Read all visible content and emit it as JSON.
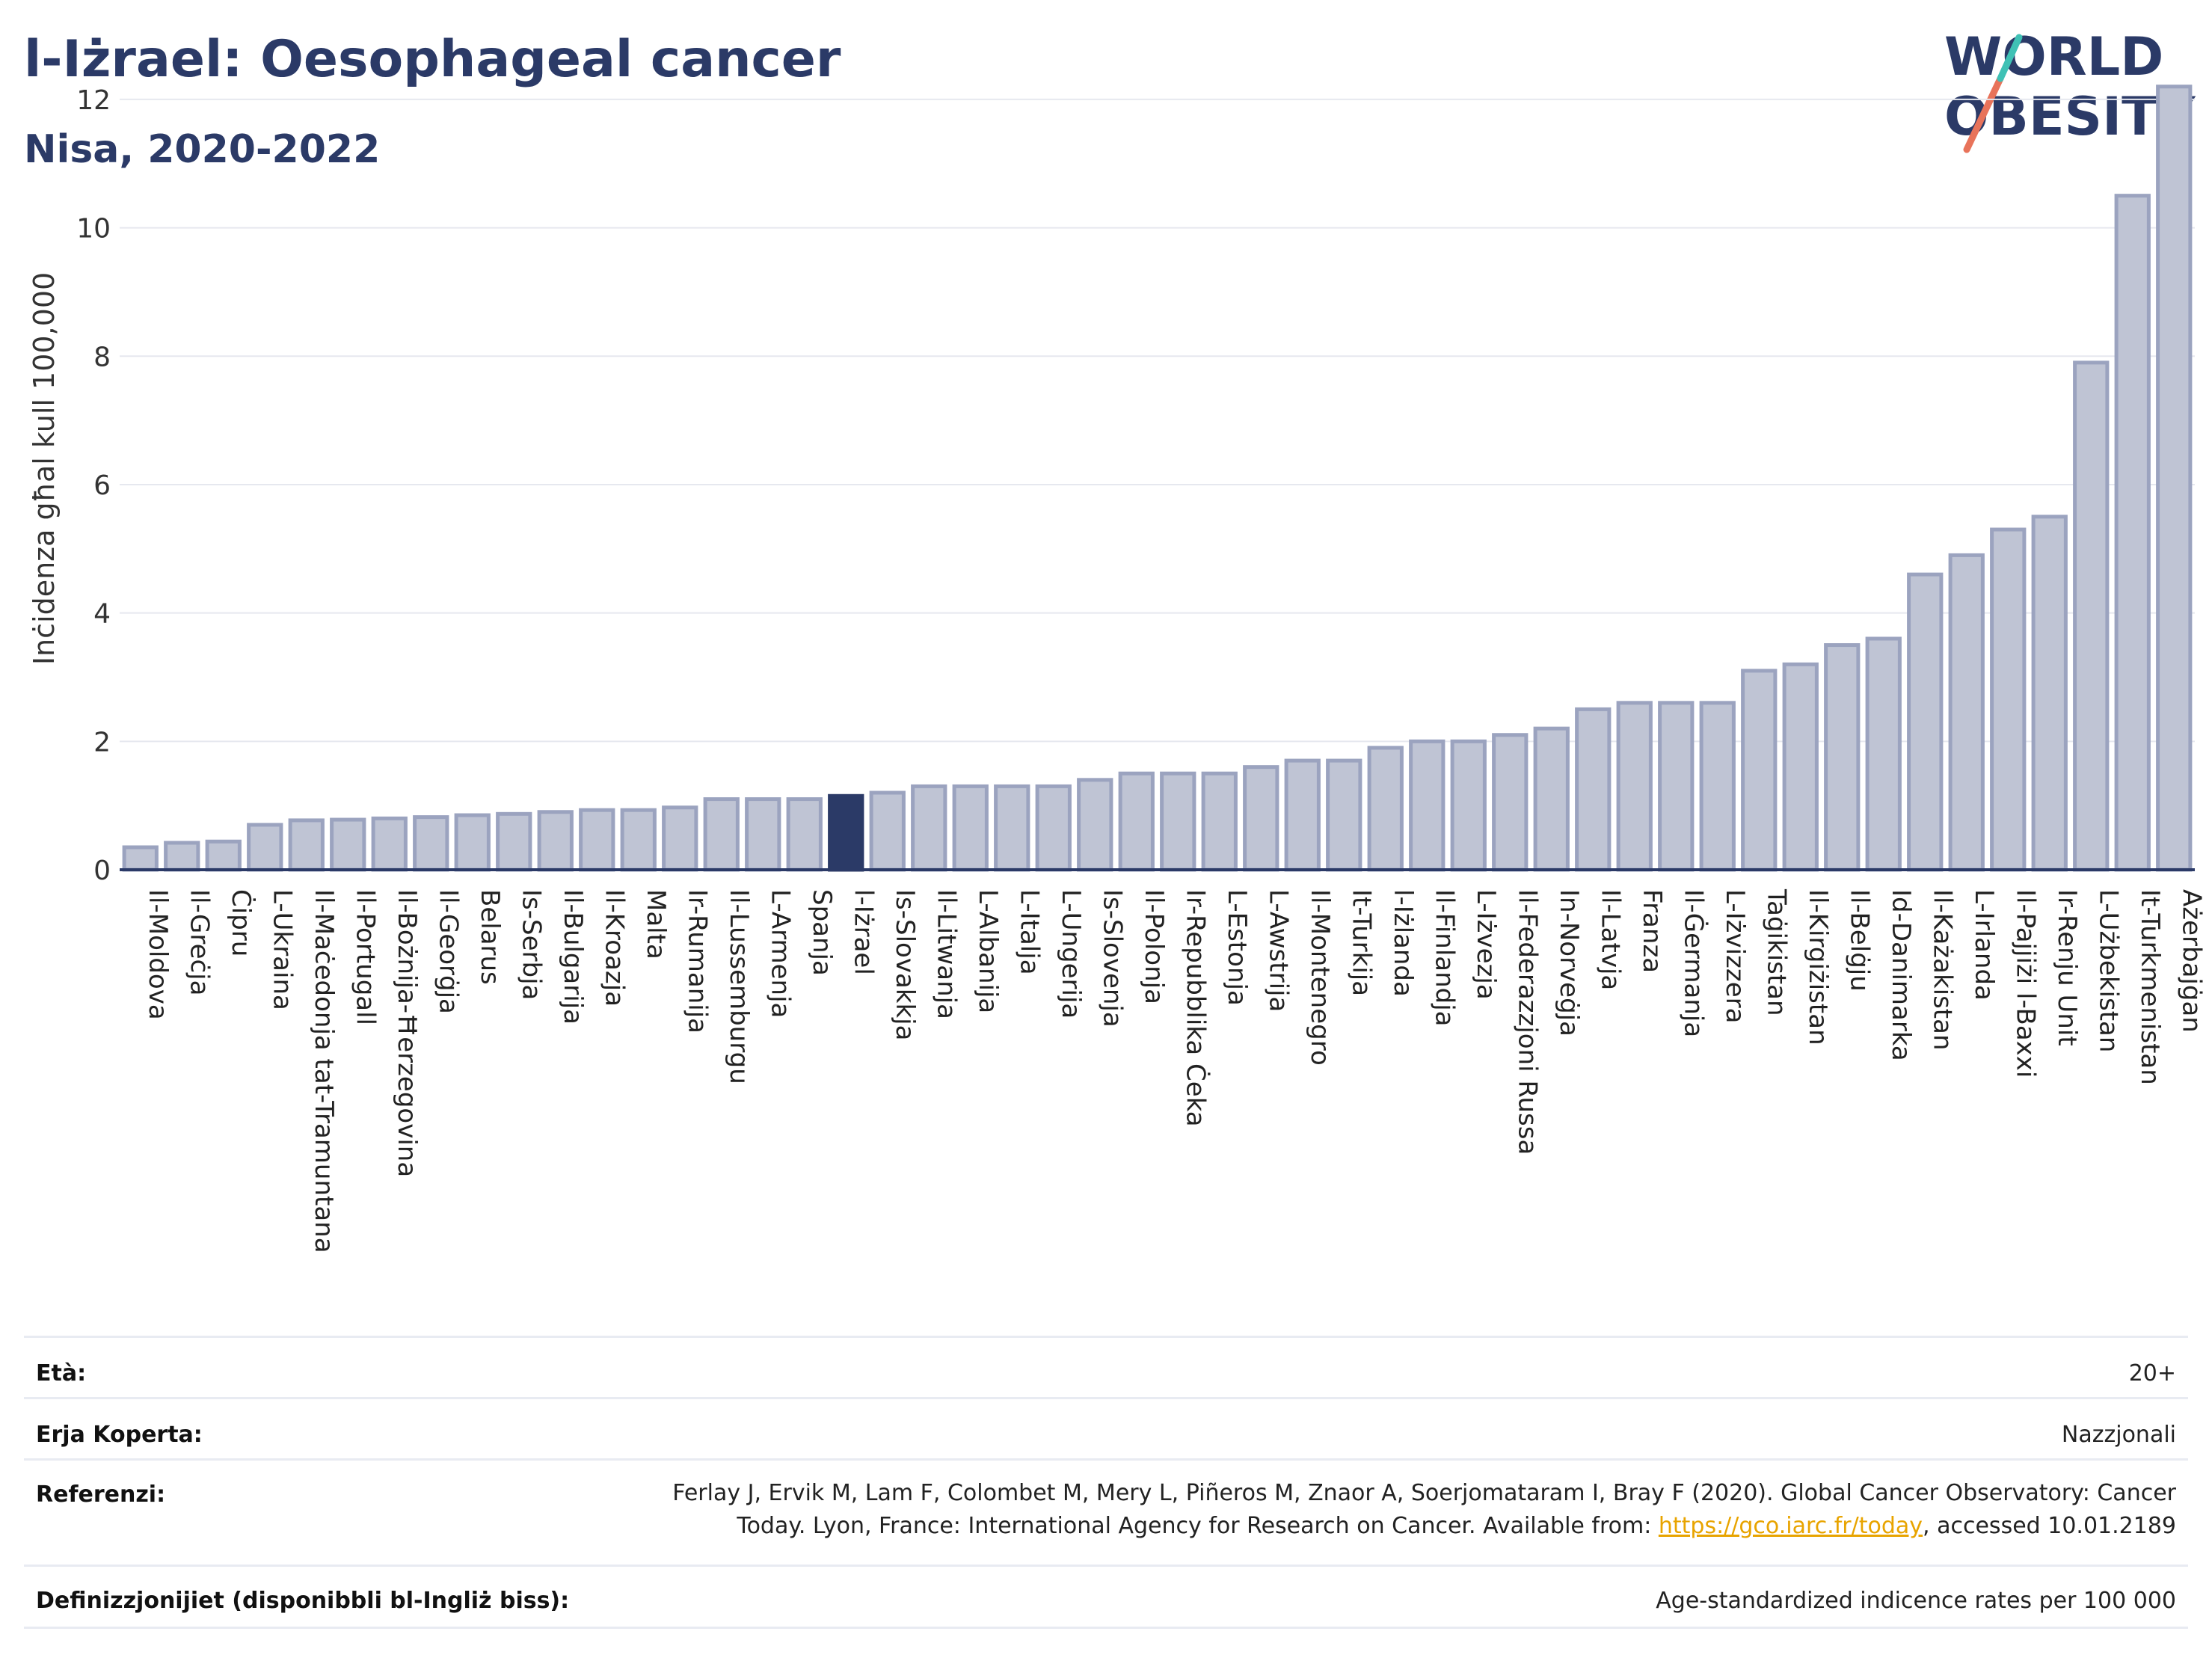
{
  "header": {
    "title": "l-Iżrael: Oesophageal cancer",
    "subtitle": "Nisa, 2020-2022"
  },
  "logo": {
    "line1": "WORLD",
    "line2": "OBESITY"
  },
  "colors": {
    "bar": "#bfc4d4",
    "bar_stroke": "#9ba3bf",
    "highlight": "#2b3a67",
    "grid": "#e6e8ef",
    "axis": "#2b3a67",
    "logo_slash_red": "#e8735a",
    "logo_slash_teal": "#3fc1b5"
  },
  "chart_data": {
    "type": "bar",
    "ylabel": "Inċidenza għal kull 100,000",
    "ylim": [
      0,
      12.5
    ],
    "yticks": [
      0,
      2,
      4,
      6,
      8,
      10,
      12
    ],
    "highlight": "l-Iżrael",
    "categories": [
      "Il-Moldova",
      "Il-Greċja",
      "Ċipru",
      "L-Ukraina",
      "Il-Maċedonja tat-Tramuntana",
      "Il-Portugall",
      "Il-Bożnija-Ħerzegovina",
      "Il-Georġja",
      "Belarus",
      "Is-Serbja",
      "Il-Bulgarija",
      "Il-Kroazja",
      "Malta",
      "Ir-Rumanija",
      "Il-Lussemburgu",
      "L-Armenja",
      "Spanja",
      "l-Iżrael",
      "Is-Slovakkja",
      "Il-Litwanja",
      "L-Albanija",
      "L-Italja",
      "L-Ungerija",
      "Is-Slovenja",
      "Il-Polonja",
      "Ir-Repubblika Ċeka",
      "L-Estonja",
      "L-Awstrija",
      "Il-Montenegro",
      "It-Turkija",
      "l-Iżlanda",
      "Il-Finlandja",
      "L-Iżvezja",
      "Il-Federazzjoni Russa",
      "In-Norveġja",
      "Il-Latvja",
      "Franza",
      "Il-Ġermanja",
      "L-Iżvizzera",
      "Taġikistan",
      "Il-Kirgiżistan",
      "Il-Belġju",
      "Id-Danimarka",
      "Il-Każakistan",
      "L-Irlanda",
      "Il-Pajjiżi l-Baxxi",
      "Ir-Renju Unit",
      "L-Użbekistan",
      "It-Turkmenistan",
      "Ażerbajġan"
    ],
    "values": [
      0.35,
      0.42,
      0.44,
      0.7,
      0.77,
      0.78,
      0.8,
      0.82,
      0.85,
      0.87,
      0.9,
      0.93,
      0.93,
      0.97,
      1.1,
      1.1,
      1.1,
      1.15,
      1.2,
      1.3,
      1.3,
      1.3,
      1.3,
      1.4,
      1.5,
      1.5,
      1.5,
      1.6,
      1.7,
      1.7,
      1.9,
      2.0,
      2.0,
      2.1,
      2.2,
      2.5,
      2.6,
      2.6,
      2.6,
      3.1,
      3.2,
      3.5,
      3.6,
      4.6,
      4.9,
      5.3,
      5.5,
      7.9,
      10.5,
      12.2
    ]
  },
  "footer": {
    "age_label": "Età:",
    "age_value": "20+",
    "area_label": "Erja Koperta:",
    "area_value": "Nazzjonali",
    "ref_label": "Referenzi:",
    "ref_text_1": "Ferlay J, Ervik M, Lam F, Colombet M, Mery L, Piñeros M, Znaor A, Soerjomataram I, Bray F (2020). Global Cancer Observatory: Cancer Today. Lyon, France: International Agency for Research on Cancer. Available from: ",
    "ref_link": "https://gco.iarc.fr/today",
    "ref_text_2": ", accessed 10.01.2189",
    "def_label": "Definizzjonijiet (disponibbli bl-Ingliż biss):",
    "def_value": "Age-standardized indicence rates per 100 000"
  }
}
